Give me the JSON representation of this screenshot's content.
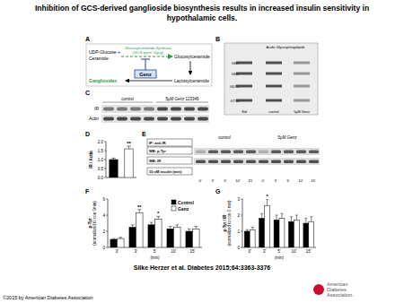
{
  "header": {
    "title": [
      "Inhibition of GCS-derived ganglioside biosynthesis results in increased insulin sensitivity in",
      "hypothalamic cells."
    ]
  },
  "panel_a": {
    "title": "A",
    "substrate": "UDP-Glucose +",
    "ceramide": "Ceramide",
    "enzyme": "Glucosylceramide Synthase",
    "gene": "(GCS gene: Ugcg)",
    "product": "Glucosylceramide",
    "lactosylceramide": "Lactosylceramide",
    "gangliosides": "Gangliosides",
    "inhibitor": "Genz"
  },
  "panel_b": {
    "title": "B",
    "header": "Acidic Glycosphingolipids",
    "bands": [
      "GM3",
      "GM2",
      "GD1a",
      "GT1b"
    ],
    "lanes": [
      "Std",
      "control",
      "5μM Genz"
    ]
  },
  "panel_c": {
    "title": "C",
    "groups": [
      "control",
      "5μM Genz 123346"
    ],
    "rows": [
      "IR",
      "Actin"
    ]
  },
  "panel_e": {
    "title": "E",
    "rows": [
      "IP: anti-IR",
      "WB: p-Tyr",
      "WB: IR",
      "10 nM insulin (min)"
    ],
    "groups": [
      "control",
      "5μM Genz"
    ],
    "times": [
      "0'",
      "3'",
      "5'",
      "10'",
      "15'"
    ]
  },
  "chart_data": [
    {
      "type": "bar",
      "title": "D",
      "y_label": [
        "IR / Actin"
      ],
      "categories": [
        null,
        null
      ],
      "values": [
        1.0,
        1.6
      ],
      "errors": [
        0.08,
        0.15
      ],
      "colors": [
        "#000000",
        "#ffffff"
      ],
      "significance": [
        null,
        "**"
      ],
      "ylim": [
        0,
        2
      ],
      "yticks": [
        {
          "value": 0,
          "label": "0.0"
        },
        {
          "value": 0.5,
          "label": "0.5"
        },
        {
          "value": 1,
          "label": "1.0"
        },
        {
          "value": 1.5,
          "label": "1.5"
        },
        {
          "value": 2,
          "label": "2.0"
        }
      ]
    },
    {
      "type": "bar",
      "title": "F",
      "y_label": [
        "p-Tyr",
        "(normalized to con 0min)"
      ],
      "x_label": "(min)",
      "categories": [
        "0'",
        "3'",
        "5'",
        "10'",
        "15'"
      ],
      "series": [
        {
          "name": "Control",
          "color": "#000000",
          "values": [
            1.0,
            2.5,
            2.8,
            2.3,
            2.0
          ],
          "errors": [
            0.1,
            0.3,
            0.3,
            0.3,
            0.3
          ]
        },
        {
          "name": "Genz",
          "color": "#ffffff",
          "values": [
            1.1,
            4.3,
            3.5,
            2.5,
            2.3
          ],
          "errors": [
            0.15,
            0.4,
            0.35,
            0.3,
            0.3
          ],
          "significance": [
            null,
            "**",
            "*",
            null,
            null
          ]
        }
      ],
      "legend": "top-right",
      "ylim": [
        0,
        6
      ],
      "yticks": [
        0,
        2,
        4,
        6
      ]
    },
    {
      "type": "bar",
      "title": "G",
      "y_label": [
        "p-Tyr / IR",
        "(normalized to con 0 min)"
      ],
      "x_label": "(min)",
      "categories": [
        "0'",
        "3'",
        "5'",
        "10'",
        "15'"
      ],
      "series": [
        {
          "color": "#000000",
          "values": [
            1.0,
            1.8,
            1.7,
            1.6,
            1.5
          ],
          "errors": [
            0.1,
            0.3,
            0.3,
            0.3,
            0.3
          ]
        },
        {
          "color": "#ffffff",
          "values": [
            1.1,
            2.6,
            1.8,
            1.7,
            1.6
          ],
          "errors": [
            0.15,
            0.4,
            0.3,
            0.3,
            0.3
          ],
          "significance": [
            null,
            "*",
            null,
            null,
            null
          ]
        }
      ],
      "legend": false,
      "ylim": [
        0,
        3
      ],
      "yticks": [
        0,
        1,
        2,
        3
      ]
    }
  ],
  "footer": {
    "citation": "Silke Herzer et al. Diabetes 2015;64:3363-3376",
    "copyright": "©2015 by American Diabetes Association",
    "publisher": [
      "American",
      "Diabetes",
      "Association."
    ]
  }
}
